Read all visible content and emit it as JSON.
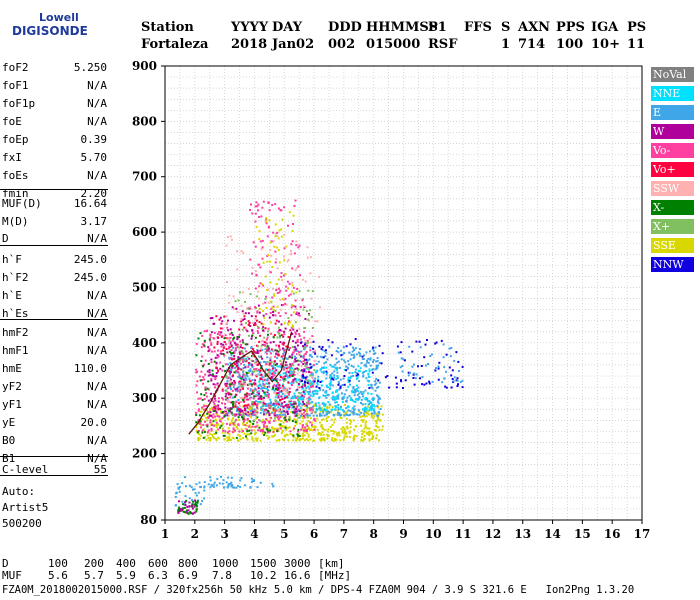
{
  "logo": {
    "line1": "Lowell",
    "line2": "DIGISONDE"
  },
  "header": {
    "labels": [
      "Station",
      "YYYY",
      "DAY",
      "DDD",
      "HHMMSS",
      "P1",
      "FFS",
      "S",
      "AXN",
      "PPS",
      "IGA",
      "PS"
    ],
    "values": [
      "Fortaleza",
      "2018",
      "Jan02",
      "002",
      "015000",
      "RSF",
      "",
      "1",
      "714",
      "100",
      "10+",
      "11"
    ]
  },
  "params": [
    {
      "name": "foF2",
      "value": "5.250"
    },
    {
      "name": "foF1",
      "value": "N/A"
    },
    {
      "name": "foF1p",
      "value": "N/A"
    },
    {
      "name": "foE",
      "value": "N/A"
    },
    {
      "name": "foEp",
      "value": "0.39"
    },
    {
      "name": "fxI",
      "value": "5.70"
    },
    {
      "name": "foEs",
      "value": "N/A"
    },
    {
      "name": "fmin",
      "value": "2.20"
    },
    {
      "name": "MUF(D)",
      "value": "16.64"
    },
    {
      "name": "M(D)",
      "value": "3.17"
    },
    {
      "name": "D",
      "value": "N/A"
    },
    {
      "name": "h`F",
      "value": "245.0"
    },
    {
      "name": "h`F2",
      "value": "245.0"
    },
    {
      "name": "h`E",
      "value": "N/A"
    },
    {
      "name": "h`Es",
      "value": "N/A"
    },
    {
      "name": "hmF2",
      "value": "N/A"
    },
    {
      "name": "hmF1",
      "value": "N/A"
    },
    {
      "name": "hmE",
      "value": "110.0"
    },
    {
      "name": "yF2",
      "value": "N/A"
    },
    {
      "name": "yF1",
      "value": "N/A"
    },
    {
      "name": "yE",
      "value": "20.0"
    },
    {
      "name": "B0",
      "value": "N/A"
    },
    {
      "name": "B1",
      "value": "N/A"
    },
    {
      "name": "C-level",
      "value": "55"
    }
  ],
  "auto": {
    "line1": "Auto:",
    "line2": "Artist5",
    "line3": "500200"
  },
  "footer": {
    "d_label": "D",
    "d_values": [
      "100",
      "200",
      "400",
      "600",
      "800",
      "1000",
      "1500",
      "3000"
    ],
    "d_unit": "[km]",
    "muf_label": "MUF",
    "muf_values": [
      "5.6",
      "5.7",
      "5.9",
      "6.3",
      "6.9",
      "7.8",
      "10.2",
      "16.6"
    ],
    "muf_unit": "[MHz]",
    "info": "FZA0M_2018002015000.RSF / 320fx256h 50 kHz 5.0 km / DPS-4 FZA0M 904 / 3.9 S 321.6 E   Ion2Png 1.3.20"
  },
  "legend": [
    {
      "label": "NoVal",
      "color": "#808080"
    },
    {
      "label": "NNE",
      "color": "#00e0ff"
    },
    {
      "label": "E",
      "color": "#3fa6e8"
    },
    {
      "label": "W",
      "color": "#b0009c"
    },
    {
      "label": "Vo-",
      "color": "#ff40a0"
    },
    {
      "label": "Vo+",
      "color": "#ff0040"
    },
    {
      "label": "SSW",
      "color": "#ffb0b0"
    },
    {
      "label": "X-",
      "color": "#008000"
    },
    {
      "label": "X+",
      "color": "#80c060"
    },
    {
      "label": "SSE",
      "color": "#d8d800"
    },
    {
      "label": "NNW",
      "color": "#1000e0"
    }
  ],
  "chart_data": {
    "type": "scatter",
    "title": "",
    "xlabel": "",
    "ylabel": "",
    "xlim": [
      1,
      17
    ],
    "ylim": [
      80,
      900
    ],
    "x_ticks": [
      1,
      2,
      3,
      4,
      5,
      6,
      7,
      8,
      9,
      10,
      11,
      12,
      13,
      14,
      15,
      16,
      17
    ],
    "y_ticks": [
      80,
      200,
      300,
      400,
      500,
      600,
      700,
      800,
      900
    ],
    "grid": true,
    "legend_position": "right",
    "trace": {
      "name": "",
      "points": [
        [
          1.8,
          235
        ],
        [
          2.1,
          255
        ],
        [
          2.5,
          290
        ],
        [
          2.9,
          330
        ],
        [
          3.2,
          360
        ],
        [
          3.6,
          375
        ],
        [
          3.9,
          385
        ],
        [
          4.1,
          370
        ],
        [
          4.3,
          350
        ],
        [
          4.6,
          330
        ],
        [
          4.9,
          350
        ],
        [
          5.1,
          390
        ],
        [
          5.25,
          420
        ]
      ]
    },
    "regions": [
      {
        "color": "#d8d800",
        "x": [
          2.0,
          8.3
        ],
        "y": [
          225,
          290
        ],
        "density": 600
      },
      {
        "color": "#3fa6e8",
        "x": [
          3.0,
          8.2
        ],
        "y": [
          270,
          395
        ],
        "density": 700
      },
      {
        "color": "#00e0ff",
        "x": [
          4.0,
          8.0
        ],
        "y": [
          280,
          360
        ],
        "density": 250
      },
      {
        "color": "#ff40a0",
        "x": [
          2.0,
          6.0
        ],
        "y": [
          240,
          430
        ],
        "density": 500
      },
      {
        "color": "#b0009c",
        "x": [
          2.4,
          5.8
        ],
        "y": [
          270,
          470
        ],
        "density": 300
      },
      {
        "color": "#ff0040",
        "x": [
          2.6,
          5.2
        ],
        "y": [
          280,
          450
        ],
        "density": 160
      },
      {
        "color": "#ffb0b0",
        "x": [
          3.0,
          6.2
        ],
        "y": [
          270,
          600
        ],
        "density": 160
      },
      {
        "color": "#008000",
        "x": [
          2.0,
          5.5
        ],
        "y": [
          230,
          420
        ],
        "density": 130
      },
      {
        "color": "#80c060",
        "x": [
          3.0,
          6.0
        ],
        "y": [
          260,
          500
        ],
        "density": 130
      },
      {
        "color": "#1000e0",
        "x": [
          5.5,
          11.0
        ],
        "y": [
          320,
          410
        ],
        "density": 110
      },
      {
        "color": "#ff40a0",
        "x": [
          3.8,
          5.6
        ],
        "y": [
          450,
          660
        ],
        "density": 110
      },
      {
        "color": "#d8d800",
        "x": [
          4.0,
          5.4
        ],
        "y": [
          430,
          640
        ],
        "density": 60
      },
      {
        "color": "#3fa6e8",
        "x": [
          1.3,
          2.3
        ],
        "y": [
          105,
          160
        ],
        "density": 40
      },
      {
        "color": "#3fa6e8",
        "x": [
          2.3,
          4.8
        ],
        "y": [
          140,
          160
        ],
        "density": 50
      },
      {
        "color": "#008000",
        "x": [
          1.4,
          2.1
        ],
        "y": [
          93,
          122
        ],
        "density": 35
      },
      {
        "color": "#b0009c",
        "x": [
          1.4,
          2.0
        ],
        "y": [
          93,
          118
        ],
        "density": 20
      },
      {
        "color": "#3fa6e8",
        "x": [
          8.8,
          11.0
        ],
        "y": [
          330,
          400
        ],
        "density": 40
      }
    ]
  }
}
